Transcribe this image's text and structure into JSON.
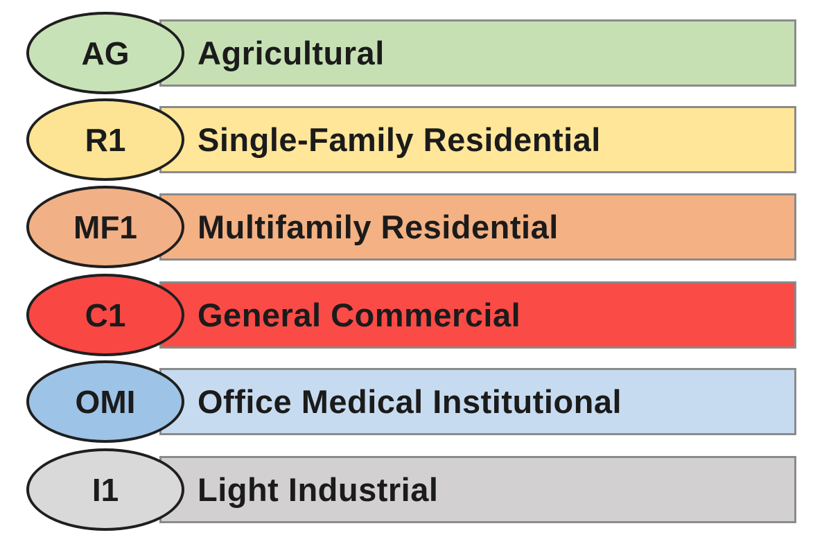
{
  "legend": {
    "items": [
      {
        "code": "AG",
        "label": "Agricultural",
        "bar_color": "#C6E0B4",
        "ellipse_color": "#C8E2B8"
      },
      {
        "code": "R1",
        "label": "Single-Family Residential",
        "bar_color": "#FFE699",
        "ellipse_color": "#FCE494"
      },
      {
        "code": "MF1",
        "label": "Multifamily Residential",
        "bar_color": "#F4B183",
        "ellipse_color": "#F2B086"
      },
      {
        "code": "C1",
        "label": "General Commercial",
        "bar_color": "#FA4B47",
        "ellipse_color": "#F94743"
      },
      {
        "code": "OMI",
        "label": "Office Medical Institutional",
        "bar_color": "#C7DBF0",
        "ellipse_color": "#9DC3E6"
      },
      {
        "code": "I1",
        "label": "Light Industrial",
        "bar_color": "#D2D0D0",
        "ellipse_color": "#D9D9D9"
      }
    ]
  }
}
